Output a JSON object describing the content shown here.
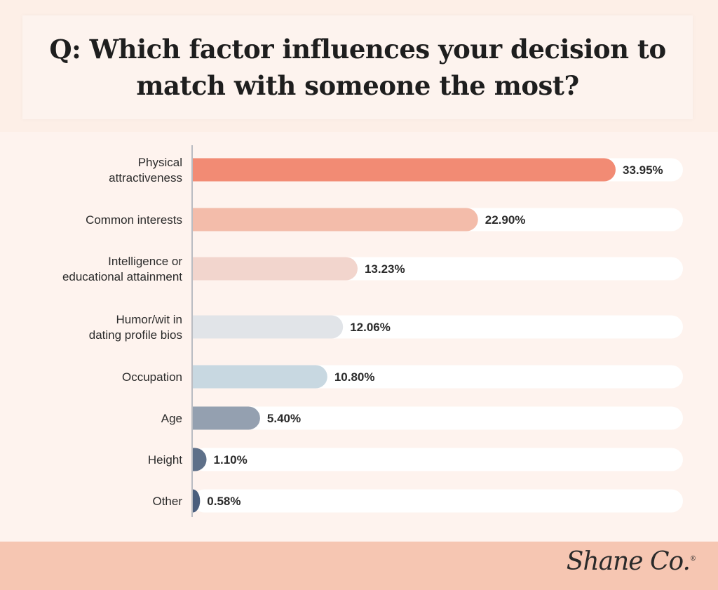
{
  "title": "Q: Which factor influences your decision to match with someone the most?",
  "brand": "Shane Co.",
  "chart_data": {
    "type": "bar",
    "orientation": "horizontal",
    "categories": [
      [
        "Physical",
        "attractiveness"
      ],
      [
        "Common interests"
      ],
      [
        "Intelligence or",
        "educational attainment"
      ],
      [
        "Humor/wit in",
        "dating profile bios"
      ],
      [
        "Occupation"
      ],
      [
        "Age"
      ],
      [
        "Height"
      ],
      [
        "Other"
      ]
    ],
    "values": [
      33.95,
      22.9,
      13.23,
      12.06,
      10.8,
      5.4,
      1.1,
      0.58
    ],
    "value_labels": [
      "33.95%",
      "22.90%",
      "13.23%",
      "12.06%",
      "10.80%",
      "5.40%",
      "1.10%",
      "0.58%"
    ],
    "colors": [
      "#f28b74",
      "#f3bcaa",
      "#f2d5cd",
      "#e1e4e8",
      "#c8d8e1",
      "#94a0b0",
      "#5e7089",
      "#4a5e7d"
    ],
    "xlim": [
      0,
      33.95
    ],
    "grid": false,
    "legend": "none"
  }
}
